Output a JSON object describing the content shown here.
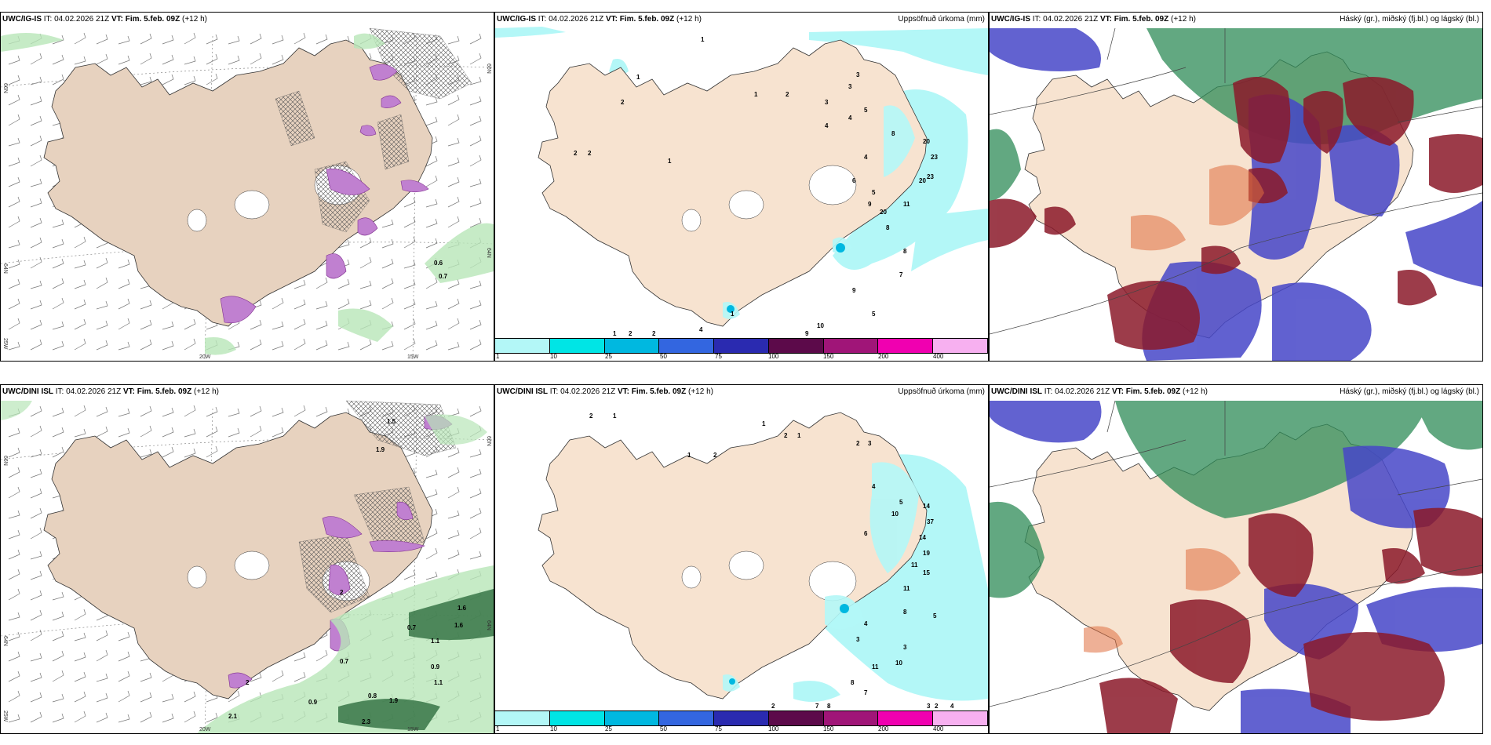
{
  "panels": [
    {
      "id": "ig-wind",
      "model": "UWC/IG-IS",
      "it_label": "IT:",
      "it": "04.02.2026 21Z",
      "vt_label": "VT:",
      "vt": "Fim. 5.feb. 09Z",
      "lead": "(+12 h)",
      "right_title": "",
      "lat_labels": [
        "66N",
        "64N"
      ],
      "lat_right": [
        "66N",
        "64N"
      ],
      "lon_labels": [
        "20W",
        "15W"
      ],
      "corner_label": "25W",
      "values": [
        "0.6",
        "0.7"
      ]
    },
    {
      "id": "ig-precip",
      "model": "UWC/IG-IS",
      "it_label": "IT:",
      "it": "04.02.2026 21Z",
      "vt_label": "VT:",
      "vt": "Fim. 5.feb. 09Z",
      "lead": "(+12 h)",
      "right_title": "Uppsöfnuð úrkoma (mm)",
      "values": [
        "1",
        "2",
        "2",
        "2",
        "1",
        "1",
        "2",
        "3",
        "3",
        "3",
        "4",
        "5",
        "8",
        "20",
        "23",
        "23",
        "20",
        "4",
        "4",
        "6",
        "5",
        "9",
        "20",
        "11",
        "8",
        "8",
        "7",
        "9",
        "5",
        "10",
        "9",
        "4",
        "1",
        "2",
        "2",
        "1",
        "1"
      ]
    },
    {
      "id": "ig-cloud",
      "model": "UWC/IG-IS",
      "it_label": "IT:",
      "it": "04.02.2026 21Z",
      "vt_label": "VT:",
      "vt": "Fim. 5.feb. 09Z",
      "lead": "(+12 h)",
      "right_title": "Háský (gr.), miðský (fj.bl.) og lágský (bl.)"
    },
    {
      "id": "dini-wind",
      "model": "UWC/DINI ISL",
      "it_label": "IT:",
      "it": "04.02.2026 21Z",
      "vt_label": "VT:",
      "vt": "Fim. 5.feb. 09Z",
      "lead": "(+12 h)",
      "right_title": "",
      "lat_labels": [
        "66N",
        "64N"
      ],
      "lat_right": [
        "66N",
        "64N"
      ],
      "lon_labels": [
        "20W",
        "15W"
      ],
      "corner_label": "25W",
      "values": [
        "1.5",
        "1.9",
        "0.7",
        "1.6",
        "1.6",
        "0.7",
        "0.9",
        "0.8",
        "1.9",
        "2.1",
        "2",
        "2.3",
        "1.1",
        "1.1",
        "0.9",
        "2"
      ]
    },
    {
      "id": "dini-precip",
      "model": "UWC/DINI ISL",
      "it_label": "IT:",
      "it": "04.02.2026 21Z",
      "vt_label": "VT:",
      "vt": "Fim. 5.feb. 09Z",
      "lead": "(+12 h)",
      "right_title": "Uppsöfnuð úrkoma (mm)",
      "values": [
        "2",
        "1",
        "1",
        "2",
        "1",
        "1",
        "2",
        "2",
        "3",
        "5",
        "4",
        "10",
        "14",
        "37",
        "6",
        "14",
        "19",
        "11",
        "15",
        "11",
        "8",
        "4",
        "5",
        "3",
        "3",
        "10",
        "11",
        "8",
        "7",
        "7",
        "8",
        "2",
        "2",
        "3",
        "4"
      ]
    },
    {
      "id": "dini-cloud",
      "model": "UWC/DINI ISL",
      "it_label": "IT:",
      "it": "04.02.2026 21Z",
      "vt_label": "VT:",
      "vt": "Fim. 5.feb. 09Z",
      "lead": "(+12 h)",
      "right_title": "Háský (gr.), miðský (fj.bl.) og lágský (bl.)"
    }
  ],
  "colorbar": {
    "labels": [
      "1",
      "10",
      "25",
      "50",
      "75",
      "100",
      "150",
      "200",
      "400"
    ],
    "colors": [
      "#b3f7f7",
      "#00e5e5",
      "#00b8e0",
      "#3366e0",
      "#2a2ab0",
      "#5c0a4a",
      "#a01578",
      "#f000b0",
      "#f7b0f0"
    ]
  },
  "colors": {
    "land": "#f7e3d0",
    "wind_land": "#e7d2bf",
    "precip_light": "#b3f7f7",
    "cloud_high": "#2e8b57",
    "cloud_mid": "#4646c8",
    "cloud_low": "#8b1a2a",
    "mix_light": "#d0e8d8"
  }
}
